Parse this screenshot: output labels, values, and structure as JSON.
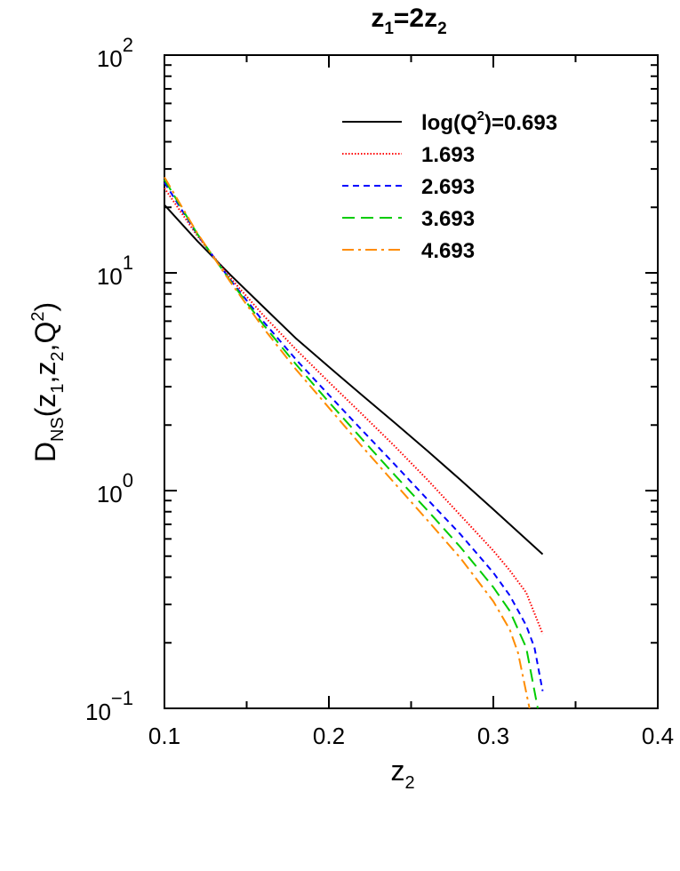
{
  "chart_data": {
    "type": "line",
    "title_parts": {
      "z": "z",
      "sub1": "1",
      "eq": "=2z",
      "sub2": "2"
    },
    "xlabel_parts": {
      "z": "z",
      "sub": "2"
    },
    "ylabel_parts": {
      "D": "D",
      "NS": "NS",
      "open": "(z",
      "s1": "1",
      "mid": ",z",
      "s2": "2",
      "q": ",Q",
      "sup": "2",
      "close": ")"
    },
    "xlim": [
      0.1,
      0.4
    ],
    "ylim": [
      0.1,
      100
    ],
    "yscale": "log",
    "xticks": [
      0.1,
      0.2,
      0.3,
      0.4
    ],
    "xtick_labels": [
      "0.1",
      "0.2",
      "0.3",
      "0.4"
    ],
    "yticks": [
      0.1,
      1,
      10,
      100
    ],
    "ytick_labels": [
      {
        "base": "10",
        "exp": "−1"
      },
      {
        "base": "10",
        "exp": "0"
      },
      {
        "base": "10",
        "exp": "1"
      },
      {
        "base": "10",
        "exp": "2"
      }
    ],
    "legend_position": "top-right",
    "series": [
      {
        "name": "log(Q²)=0.693",
        "legend_parts": {
          "pre": "log(Q",
          "sup": "2",
          "post": ")=0.693"
        },
        "color": "#000000",
        "dash": "solid",
        "x": [
          0.1,
          0.12,
          0.14,
          0.16,
          0.18,
          0.2,
          0.22,
          0.24,
          0.26,
          0.28,
          0.3,
          0.33
        ],
        "y": [
          20.5,
          14.0,
          9.8,
          7.0,
          5.0,
          3.7,
          2.75,
          2.05,
          1.52,
          1.12,
          0.82,
          0.51
        ]
      },
      {
        "name": "1.693",
        "legend_parts": {
          "pre": "1.693",
          "sup": "",
          "post": ""
        },
        "color": "#ff0000",
        "dash": "dotted",
        "x": [
          0.1,
          0.12,
          0.14,
          0.16,
          0.18,
          0.2,
          0.22,
          0.24,
          0.26,
          0.28,
          0.3,
          0.31,
          0.32,
          0.33
        ],
        "y": [
          24.5,
          14.8,
          9.5,
          6.4,
          4.45,
          3.15,
          2.25,
          1.6,
          1.12,
          0.77,
          0.53,
          0.43,
          0.34,
          0.22
        ]
      },
      {
        "name": "2.693",
        "legend_parts": {
          "pre": "2.693",
          "sup": "",
          "post": ""
        },
        "color": "#0000ff",
        "dash": "dashed",
        "x": [
          0.1,
          0.12,
          0.14,
          0.16,
          0.18,
          0.2,
          0.22,
          0.24,
          0.26,
          0.28,
          0.3,
          0.31,
          0.32,
          0.325,
          0.33
        ],
        "y": [
          26.0,
          15.0,
          9.3,
          6.0,
          4.0,
          2.75,
          1.9,
          1.32,
          0.91,
          0.63,
          0.42,
          0.33,
          0.24,
          0.19,
          0.12
        ]
      },
      {
        "name": "3.693",
        "legend_parts": {
          "pre": "3.693",
          "sup": "",
          "post": ""
        },
        "color": "#00cc00",
        "dash": "longdash",
        "x": [
          0.1,
          0.12,
          0.14,
          0.16,
          0.18,
          0.2,
          0.22,
          0.24,
          0.26,
          0.28,
          0.3,
          0.31,
          0.32,
          0.327
        ],
        "y": [
          26.8,
          15.1,
          9.2,
          5.8,
          3.8,
          2.55,
          1.73,
          1.18,
          0.81,
          0.55,
          0.36,
          0.28,
          0.19,
          0.1
        ]
      },
      {
        "name": "4.693",
        "legend_parts": {
          "pre": "4.693",
          "sup": "",
          "post": ""
        },
        "color": "#ff8c00",
        "dash": "dashdot",
        "x": [
          0.1,
          0.12,
          0.14,
          0.16,
          0.18,
          0.2,
          0.22,
          0.24,
          0.26,
          0.28,
          0.3,
          0.31,
          0.315,
          0.322
        ],
        "y": [
          27.5,
          15.2,
          9.1,
          5.6,
          3.6,
          2.4,
          1.6,
          1.08,
          0.73,
          0.49,
          0.31,
          0.23,
          0.18,
          0.1
        ]
      }
    ]
  }
}
